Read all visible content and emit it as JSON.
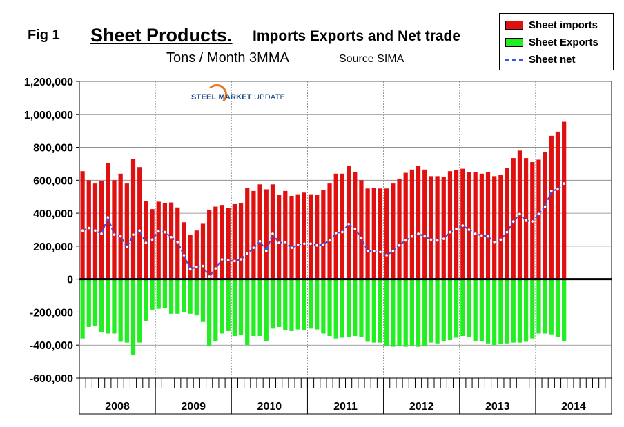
{
  "figure_label": "Fig 1",
  "title_main": "Sheet Products.",
  "title_rest": "Imports Exports and Net trade",
  "subtitle": "Tons / Month 3MMA",
  "source": "Source SIMA",
  "logo": {
    "brand": "STEEL MARKET",
    "brand_light": "UPDATE"
  },
  "colors": {
    "imports": "#e01010",
    "exports": "#22ee22",
    "net": "#3355ee",
    "net_marker": "#ffffff"
  },
  "chart_data": {
    "type": "bar",
    "title": "Sheet Products. Imports Exports and Net trade",
    "ylabel": "Tons / Month 3MMA",
    "ylim": [
      -600000,
      1200000
    ],
    "yticks": [
      1200000,
      1000000,
      800000,
      600000,
      400000,
      200000,
      0,
      -200000,
      -400000,
      -600000
    ],
    "ytick_labels": [
      "1,200,000",
      "1,000,000",
      "800,000",
      "600,000",
      "400,000",
      "200,000",
      "0",
      "-200,000",
      "-400,000",
      "-600,000"
    ],
    "years": [
      "2008",
      "2009",
      "2010",
      "2011",
      "2012",
      "2013",
      "2014"
    ],
    "months_per_year": 12,
    "legend_position": "top-right",
    "series": [
      {
        "name": "Sheet imports",
        "kind": "bar",
        "values": [
          655000,
          600000,
          580000,
          595000,
          705000,
          600000,
          640000,
          580000,
          730000,
          680000,
          475000,
          425000,
          470000,
          460000,
          465000,
          435000,
          345000,
          270000,
          295000,
          340000,
          420000,
          440000,
          450000,
          430000,
          455000,
          460000,
          555000,
          535000,
          575000,
          545000,
          575000,
          510000,
          535000,
          505000,
          515000,
          525000,
          515000,
          510000,
          540000,
          580000,
          640000,
          640000,
          685000,
          650000,
          600000,
          550000,
          555000,
          550000,
          550000,
          580000,
          610000,
          645000,
          665000,
          685000,
          665000,
          625000,
          625000,
          620000,
          655000,
          660000,
          670000,
          650000,
          650000,
          640000,
          650000,
          625000,
          635000,
          675000,
          735000,
          780000,
          735000,
          710000,
          725000,
          770000,
          870000,
          895000,
          955000
        ]
      },
      {
        "name": "Sheet Exports",
        "kind": "bar",
        "values": [
          -360000,
          -290000,
          -285000,
          -320000,
          -330000,
          -330000,
          -380000,
          -385000,
          -460000,
          -385000,
          -255000,
          -185000,
          -180000,
          -175000,
          -210000,
          -210000,
          -200000,
          -210000,
          -220000,
          -260000,
          -405000,
          -375000,
          -330000,
          -315000,
          -345000,
          -340000,
          -400000,
          -345000,
          -345000,
          -375000,
          -300000,
          -290000,
          -310000,
          -315000,
          -305000,
          -310000,
          -300000,
          -305000,
          -330000,
          -345000,
          -360000,
          -355000,
          -350000,
          -345000,
          -350000,
          -380000,
          -385000,
          -385000,
          -405000,
          -410000,
          -405000,
          -410000,
          -405000,
          -410000,
          -405000,
          -385000,
          -390000,
          -375000,
          -370000,
          -355000,
          -345000,
          -350000,
          -375000,
          -375000,
          -390000,
          -400000,
          -395000,
          -390000,
          -385000,
          -385000,
          -380000,
          -360000,
          -330000,
          -330000,
          -335000,
          -350000,
          -375000
        ]
      },
      {
        "name": "Sheet net",
        "kind": "line",
        "values": [
          295000,
          310000,
          295000,
          275000,
          375000,
          270000,
          260000,
          195000,
          270000,
          295000,
          220000,
          240000,
          290000,
          285000,
          255000,
          225000,
          145000,
          60000,
          75000,
          80000,
          15000,
          65000,
          120000,
          115000,
          110000,
          120000,
          155000,
          190000,
          230000,
          170000,
          275000,
          220000,
          225000,
          190000,
          210000,
          215000,
          215000,
          205000,
          210000,
          235000,
          280000,
          285000,
          335000,
          305000,
          250000,
          170000,
          170000,
          165000,
          145000,
          170000,
          205000,
          235000,
          260000,
          275000,
          260000,
          240000,
          235000,
          245000,
          285000,
          305000,
          325000,
          300000,
          275000,
          265000,
          260000,
          225000,
          240000,
          285000,
          350000,
          395000,
          355000,
          350000,
          395000,
          440000,
          535000,
          545000,
          580000
        ]
      }
    ]
  },
  "legend": [
    {
      "label": "Sheet imports",
      "swatch": "box",
      "color": "#e01010"
    },
    {
      "label": "Sheet Exports",
      "swatch": "box",
      "color": "#22ee22"
    },
    {
      "label": "Sheet net",
      "swatch": "dash",
      "color": "#3355ee"
    }
  ]
}
